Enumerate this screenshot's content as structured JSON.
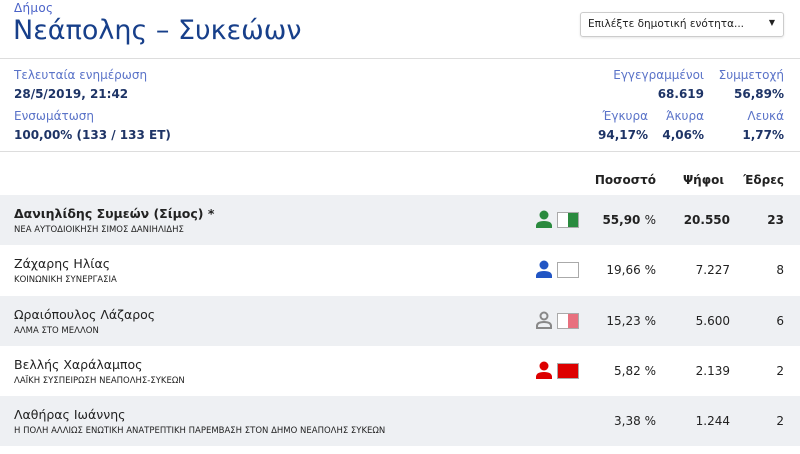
{
  "header": {
    "kicker": "Δήμος",
    "title": "Νεάπολης – Συκεώων",
    "select_placeholder": "Επιλέξτε δημοτική ενότητα..."
  },
  "stats": {
    "last_update_label": "Τελευταία ενημέρωση",
    "last_update": "28/5/2019, 21:42",
    "integration_label": "Ενσωμάτωση",
    "integration": "100,00% (133 / 133 ΕΤ)",
    "registered_label": "Εγγεγραμμένοι",
    "registered": "68.619",
    "turnout_label": "Συμμετοχή",
    "turnout": "56,89%",
    "valid_label": "Έγκυρα",
    "valid": "94,17%",
    "invalid_label": "Άκυρα",
    "invalid": "4,06%",
    "blank_label": "Λευκά",
    "blank": "1,77%"
  },
  "table": {
    "headers": {
      "pct": "Ποσοστό",
      "votes": "Ψήφοι",
      "seats": "Έδρες"
    },
    "rows": [
      {
        "name": "Δανιηλίδης Συμεών (Σίμος) *",
        "party": "ΝΕΑ ΑΥΤΟΔΙΟΙΚΗΣΗ ΣΙΜΟΣ ΔΑΝΙΗΛΙΔΗΣ",
        "pct": "55,90",
        "votes": "20.550",
        "seats": "23",
        "person_color": "#2a8a3e",
        "person_style": "filled",
        "flag_color": "#2a8a3e",
        "flag_fill": 0.5
      },
      {
        "name": "Ζάχαρης Ηλίας",
        "party": "ΚΟΙΝΩΝΙΚΗ ΣΥΝΕΡΓΑΣΙΑ",
        "pct": "19,66",
        "votes": "7.227",
        "seats": "8",
        "person_color": "#2155c4",
        "person_style": "filled",
        "flag_color": "#ffffff",
        "flag_fill": 0
      },
      {
        "name": "Ωραιόπουλος Λάζαρος",
        "party": "ΑΛΜΑ ΣΤΟ ΜΕΛΛΟΝ",
        "pct": "15,23",
        "votes": "5.600",
        "seats": "6",
        "person_color": "#888888",
        "person_style": "outline",
        "flag_color": "#e8707e",
        "flag_fill": 0.5
      },
      {
        "name": "Βελλής Χαράλαμπος",
        "party": "ΛΑΪΚΗ ΣΥΣΠΕΙΡΩΣΗ ΝΕΑΠΟΛΗΣ-ΣΥΚΕΩΝ",
        "pct": "5,82",
        "votes": "2.139",
        "seats": "2",
        "person_color": "#dd0000",
        "person_style": "filled",
        "flag_color": "#dd0000",
        "flag_fill": 1
      },
      {
        "name": "Λαθήρας Ιωάννης",
        "party": "Η ΠΟΛΗ ΑΛΛΙΩΣ ΕΝΩΤΙΚΗ ΑΝΑΤΡΕΠΤΙΚΗ ΠΑΡΕΜΒΑΣΗ ΣΤΟΝ ΔΗΜΟ ΝΕΑΠΟΛΗΣ ΣΥΚΕΩΝ",
        "pct": "3,38",
        "votes": "1.244",
        "seats": "2"
      }
    ],
    "pct_unit": "%"
  }
}
